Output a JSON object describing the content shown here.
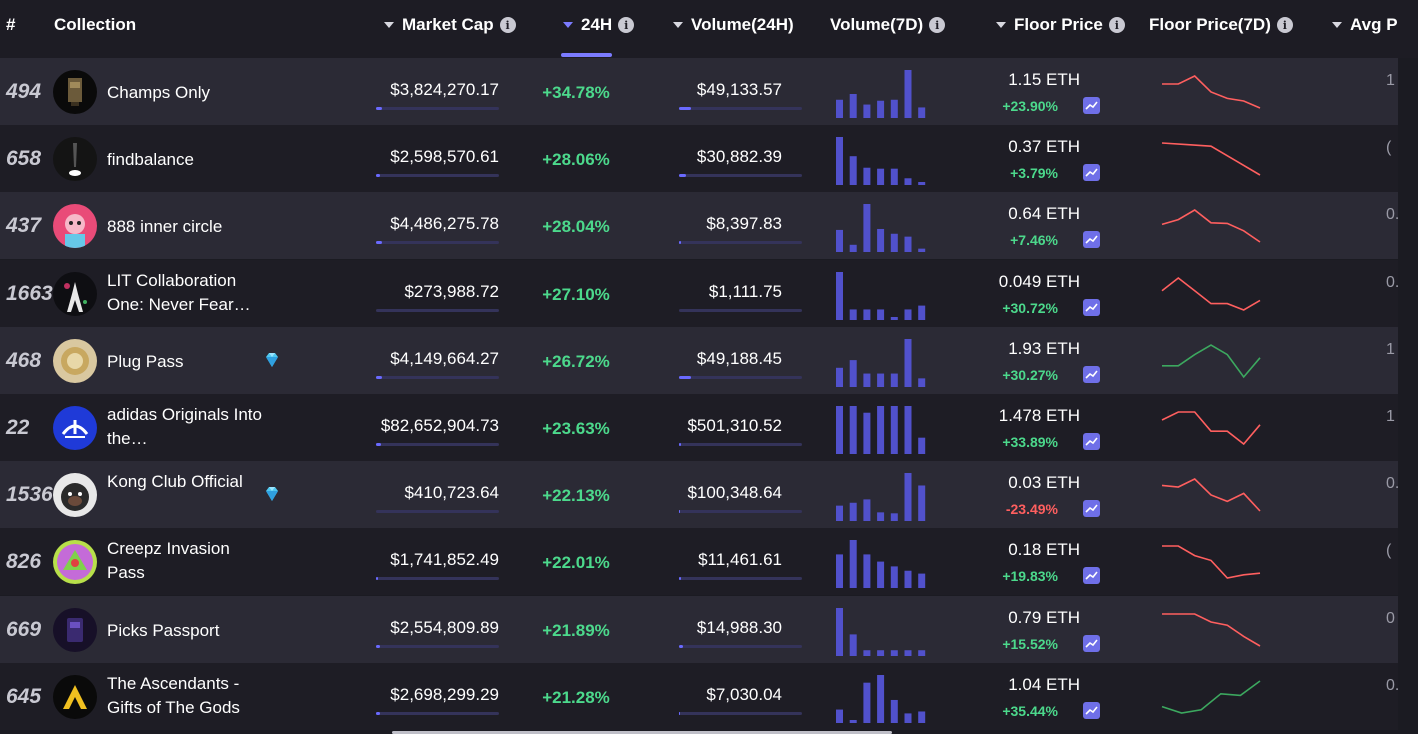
{
  "headers": {
    "rank": "#",
    "collection": "Collection",
    "market_cap": "Market Cap",
    "change_24h": "24H",
    "volume_24h": "Volume(24H)",
    "volume_7d": "Volume(7D)",
    "floor_price": "Floor Price",
    "floor_price_7d": "Floor Price(7D)",
    "avg_price": "Avg P"
  },
  "colors": {
    "accent": "#7b7bff",
    "up": "#4cd98c",
    "down": "#ff5f5f",
    "bar": "#5151cc"
  },
  "rows": [
    {
      "rank": "494",
      "name": "Champs Only",
      "lines": 1,
      "diamond": false,
      "avatar": "champs",
      "market_cap": "$3,824,270.17",
      "mcap_fill": 0.05,
      "change_24h": "+34.78%",
      "volume_24h": "$49,133.57",
      "vol_fill": 0.1,
      "vol7d": [
        0.38,
        0.5,
        0.28,
        0.36,
        0.38,
        1.0,
        0.22
      ],
      "floor": "1.15 ETH",
      "floor_change": "+23.90%",
      "floor_dir": "up",
      "floor7d": [
        0.75,
        0.75,
        1.0,
        0.5,
        0.3,
        0.22,
        0.0
      ],
      "floor7d_color": "#ff5f5f",
      "avg": "1"
    },
    {
      "rank": "658",
      "name": "findbalance",
      "lines": 1,
      "diamond": false,
      "avatar": "find",
      "market_cap": "$2,598,570.61",
      "mcap_fill": 0.03,
      "change_24h": "+28.06%",
      "volume_24h": "$30,882.39",
      "vol_fill": 0.06,
      "vol7d": [
        1.0,
        0.6,
        0.36,
        0.34,
        0.34,
        0.14,
        0.05
      ],
      "floor": "0.37 ETH",
      "floor_change": "+3.79%",
      "floor_dir": "up",
      "floor7d": [
        1.0,
        0.95,
        0.9,
        0.45,
        0.0
      ],
      "floor7d_color": "#ff5f5f",
      "avg": "("
    },
    {
      "rank": "437",
      "name": "888 inner circle",
      "lines": 1,
      "diamond": false,
      "avatar": "888",
      "market_cap": "$4,486,275.78",
      "mcap_fill": 0.05,
      "change_24h": "+28.04%",
      "volume_24h": "$8,397.83",
      "vol_fill": 0.02,
      "vol7d": [
        0.46,
        0.15,
        1.0,
        0.48,
        0.38,
        0.32,
        0.07
      ],
      "floor": "0.64 ETH",
      "floor_change": "+7.46%",
      "floor_dir": "up",
      "floor7d": [
        0.55,
        0.7,
        1.0,
        0.6,
        0.58,
        0.35,
        0.0
      ],
      "floor7d_color": "#ff5f5f",
      "avg": "0."
    },
    {
      "rank": "1663",
      "name": "LIT Collaboration One: Never Fear…",
      "lines": 2,
      "diamond": false,
      "avatar": "lit",
      "market_cap": "$273,988.72",
      "mcap_fill": 0.0,
      "change_24h": "+27.10%",
      "volume_24h": "$1,111.75",
      "vol_fill": 0.0,
      "vol7d": [
        1.0,
        0.22,
        0.22,
        0.22,
        0.06,
        0.22,
        0.3
      ],
      "floor": "0.049 ETH",
      "floor_change": "+30.72%",
      "floor_dir": "up",
      "floor7d": [
        0.6,
        1.0,
        0.6,
        0.2,
        0.2,
        0.0,
        0.3
      ],
      "floor7d_color": "#ff5f5f",
      "avg": "0."
    },
    {
      "rank": "468",
      "name": "Plug Pass",
      "lines": 1,
      "diamond": true,
      "avatar": "plug",
      "market_cap": "$4,149,664.27",
      "mcap_fill": 0.05,
      "change_24h": "+26.72%",
      "volume_24h": "$49,188.45",
      "vol_fill": 0.1,
      "vol7d": [
        0.4,
        0.56,
        0.28,
        0.28,
        0.28,
        1.0,
        0.18
      ],
      "floor": "1.93 ETH",
      "floor_change": "+30.27%",
      "floor_dir": "up",
      "floor7d": [
        0.35,
        0.35,
        0.7,
        1.0,
        0.7,
        0.0,
        0.6
      ],
      "floor7d_color": "#3ca85f",
      "avg": "1"
    },
    {
      "rank": "22",
      "name": "adidas Originals Into the…",
      "lines": 2,
      "diamond": false,
      "avatar": "adidas",
      "market_cap": "$82,652,904.73",
      "mcap_fill": 0.04,
      "change_24h": "+23.63%",
      "volume_24h": "$501,310.52",
      "vol_fill": 0.02,
      "vol7d": [
        1.0,
        1.0,
        0.86,
        1.0,
        1.0,
        1.0,
        0.34
      ],
      "floor": "1.478 ETH",
      "floor_change": "+33.89%",
      "floor_dir": "up",
      "floor7d": [
        0.75,
        1.0,
        1.0,
        0.4,
        0.4,
        0.0,
        0.6
      ],
      "floor7d_color": "#ff5f5f",
      "avg": "1"
    },
    {
      "rank": "1536",
      "name": "Kong Club Official",
      "lines": 2,
      "diamond": true,
      "avatar": "kong",
      "market_cap": "$410,723.64",
      "mcap_fill": 0.0,
      "change_24h": "+22.13%",
      "volume_24h": "$100,348.64",
      "vol_fill": 0.01,
      "vol7d": [
        0.32,
        0.38,
        0.45,
        0.18,
        0.16,
        1.0,
        0.74
      ],
      "floor": "0.03 ETH",
      "floor_change": "-23.49%",
      "floor_dir": "down",
      "floor7d": [
        0.8,
        0.75,
        1.0,
        0.5,
        0.3,
        0.55,
        0.0
      ],
      "floor7d_color": "#ff5f5f",
      "avg": "0."
    },
    {
      "rank": "826",
      "name": "Creepz Invasion Pass",
      "lines": 2,
      "diamond": false,
      "avatar": "creepz",
      "market_cap": "$1,741,852.49",
      "mcap_fill": 0.02,
      "change_24h": "+22.01%",
      "volume_24h": "$11,461.61",
      "vol_fill": 0.02,
      "vol7d": [
        0.7,
        1.0,
        0.7,
        0.55,
        0.45,
        0.36,
        0.3
      ],
      "floor": "0.18 ETH",
      "floor_change": "+19.83%",
      "floor_dir": "up",
      "floor7d": [
        1.0,
        1.0,
        0.7,
        0.55,
        0.0,
        0.1,
        0.15
      ],
      "floor7d_color": "#ff5f5f",
      "avg": "("
    },
    {
      "rank": "669",
      "name": "Picks Passport",
      "lines": 1,
      "diamond": false,
      "avatar": "picks",
      "market_cap": "$2,554,809.89",
      "mcap_fill": 0.03,
      "change_24h": "+21.89%",
      "volume_24h": "$14,988.30",
      "vol_fill": 0.03,
      "vol7d": [
        1.0,
        0.45,
        0.12,
        0.12,
        0.12,
        0.12,
        0.12
      ],
      "floor": "0.79 ETH",
      "floor_change": "+15.52%",
      "floor_dir": "up",
      "floor7d": [
        1.0,
        1.0,
        1.0,
        0.75,
        0.65,
        0.3,
        0.0
      ],
      "floor7d_color": "#ff5f5f",
      "avg": "0"
    },
    {
      "rank": "645",
      "name": "The Ascendants - Gifts of The Gods",
      "lines": 2,
      "diamond": false,
      "avatar": "asc",
      "market_cap": "$2,698,299.29",
      "mcap_fill": 0.03,
      "change_24h": "+21.28%",
      "volume_24h": "$7,030.04",
      "vol_fill": 0.01,
      "vol7d": [
        0.28,
        0.0,
        0.84,
        1.0,
        0.48,
        0.2,
        0.24
      ],
      "floor": "1.04 ETH",
      "floor_change": "+35.44%",
      "floor_dir": "up",
      "floor7d": [
        0.2,
        0.0,
        0.1,
        0.6,
        0.55,
        1.0
      ],
      "floor7d_color": "#3ca85f",
      "avg": "0."
    }
  ]
}
